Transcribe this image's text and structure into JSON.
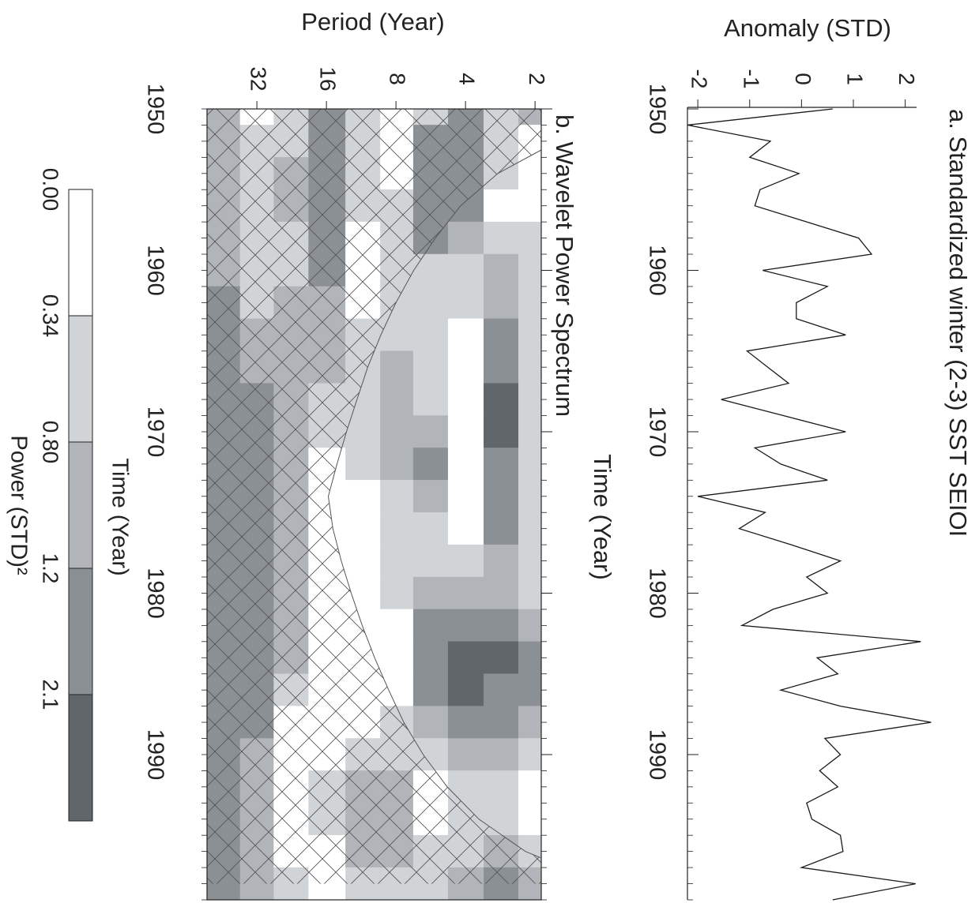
{
  "chart_data": [
    {
      "type": "line",
      "title": "a. Standardized winter (2-3) SST SEIOI",
      "xlabel": "Time (Year)",
      "ylabel": "Anomaly (STD)",
      "x": [
        1950,
        1951,
        1952,
        1953,
        1954,
        1955,
        1956,
        1957,
        1958,
        1959,
        1960,
        1961,
        1962,
        1963,
        1964,
        1965,
        1966,
        1967,
        1968,
        1969,
        1970,
        1971,
        1972,
        1973,
        1974,
        1975,
        1976,
        1977,
        1978,
        1979,
        1980,
        1981,
        1982,
        1983,
        1984,
        1985,
        1986,
        1987,
        1988,
        1989,
        1990,
        1991,
        1992,
        1993,
        1994,
        1995,
        1996,
        1997,
        1998,
        1999
      ],
      "values": [
        0.6,
        -2.2,
        -0.6,
        -1.0,
        -0.05,
        -0.8,
        -0.9,
        0.1,
        1.1,
        1.35,
        -0.75,
        0.5,
        -0.1,
        -0.1,
        0.85,
        -1.05,
        -0.65,
        -0.25,
        -1.55,
        -0.35,
        0.85,
        -0.9,
        -0.4,
        0.5,
        -2.0,
        -0.7,
        -1.2,
        -0.2,
        0.75,
        0.1,
        0.5,
        -0.55,
        -1.15,
        2.3,
        0.3,
        0.7,
        -0.4,
        0.75,
        2.5,
        0.45,
        0.75,
        0.35,
        0.7,
        0.1,
        0.2,
        0.75,
        0.8,
        0.0,
        2.2,
        0.6
      ],
      "color": "#1a1a1a",
      "xlim": [
        1950,
        1999
      ],
      "xticks": [
        1950,
        1960,
        1970,
        1980,
        1990
      ],
      "ylim": [
        -2.2,
        2.6
      ],
      "yticks": [
        -2,
        -1,
        0,
        1,
        2
      ]
    },
    {
      "type": "heatmap",
      "title": "b. Wavelet Power Spectrum",
      "xlabel": "Time (Year)",
      "ylabel": "Period (Year)",
      "x": [
        1950,
        1952,
        1954,
        1956,
        1958,
        1960,
        1962,
        1964,
        1966,
        1968,
        1970,
        1972,
        1974,
        1976,
        1978,
        1980,
        1982,
        1984,
        1986,
        1988,
        1990,
        1992,
        1994,
        1996,
        1998
      ],
      "y": [
        2,
        2.8,
        4,
        5.7,
        8,
        11,
        16,
        23,
        32,
        45
      ],
      "z": [
        [
          1.0,
          0.2,
          0.2,
          0.2,
          0.6,
          0.6,
          0.6,
          0.6,
          0.6,
          0.6,
          0.6,
          0.6,
          0.6,
          0.6,
          0.6,
          0.6,
          1.0,
          1.6,
          1.6,
          1.0,
          0.6,
          0.2,
          0.2,
          0.6,
          1.0
        ],
        [
          0.6,
          0.6,
          0.6,
          0.2,
          0.6,
          1.0,
          1.0,
          1.6,
          1.6,
          2.4,
          2.4,
          1.6,
          1.6,
          1.6,
          1.0,
          1.0,
          1.6,
          2.4,
          1.6,
          1.6,
          1.0,
          0.6,
          0.6,
          1.0,
          1.6
        ],
        [
          1.6,
          1.6,
          1.6,
          1.6,
          1.0,
          0.6,
          0.6,
          0.2,
          0.2,
          0.2,
          0.2,
          0.2,
          0.2,
          0.2,
          0.6,
          1.0,
          1.6,
          2.4,
          2.4,
          1.6,
          1.0,
          0.6,
          0.6,
          0.6,
          1.0
        ],
        [
          0.6,
          1.6,
          1.6,
          1.6,
          1.6,
          0.6,
          0.6,
          0.6,
          0.6,
          0.6,
          1.0,
          1.6,
          1.0,
          0.6,
          0.6,
          1.0,
          1.6,
          1.6,
          1.6,
          1.0,
          0.6,
          0.2,
          0.2,
          0.6,
          0.6
        ],
        [
          0.2,
          0.2,
          0.2,
          0.6,
          0.6,
          0.6,
          0.6,
          0.6,
          1.0,
          1.0,
          1.0,
          1.0,
          0.6,
          0.6,
          0.6,
          0.6,
          0.2,
          0.2,
          0.2,
          0.6,
          0.6,
          1.0,
          1.0,
          1.0,
          0.6
        ],
        [
          0.6,
          0.6,
          0.6,
          0.6,
          0.2,
          0.2,
          0.2,
          0.6,
          0.6,
          0.6,
          0.6,
          0.6,
          0.2,
          0.2,
          0.2,
          0.2,
          0.2,
          0.2,
          0.2,
          0.2,
          0.6,
          1.0,
          1.0,
          1.0,
          0.6
        ],
        [
          1.6,
          1.6,
          1.6,
          1.6,
          1.6,
          1.6,
          1.0,
          1.0,
          1.0,
          0.6,
          0.6,
          0.2,
          0.2,
          0.2,
          0.2,
          0.2,
          0.2,
          0.2,
          0.2,
          0.2,
          0.2,
          0.6,
          0.6,
          0.2,
          0.2
        ],
        [
          0.6,
          0.6,
          1.0,
          1.0,
          0.6,
          0.6,
          1.0,
          1.0,
          1.0,
          1.0,
          1.0,
          1.0,
          1.0,
          1.0,
          1.0,
          1.0,
          1.0,
          1.0,
          0.6,
          0.2,
          0.2,
          0.2,
          0.2,
          0.2,
          0.6
        ],
        [
          0.2,
          0.6,
          0.6,
          0.6,
          0.6,
          0.6,
          0.6,
          1.0,
          1.0,
          1.6,
          1.6,
          1.6,
          1.6,
          1.6,
          1.6,
          1.6,
          1.6,
          1.6,
          1.6,
          1.6,
          1.0,
          1.0,
          1.0,
          1.0,
          1.0
        ],
        [
          1.0,
          1.0,
          1.0,
          1.0,
          1.0,
          1.0,
          1.6,
          1.6,
          1.6,
          1.6,
          1.6,
          1.6,
          1.6,
          1.6,
          1.6,
          1.6,
          1.6,
          1.6,
          1.6,
          1.6,
          1.6,
          1.6,
          1.6,
          1.6,
          1.6
        ]
      ],
      "xlim": [
        1950,
        1999
      ],
      "xticks": [
        1950,
        1960,
        1970,
        1980,
        1990
      ],
      "ylim": [
        1.88,
        52.6
      ],
      "yticks": [
        2,
        4,
        8,
        16,
        32
      ],
      "ylog": true,
      "coi": [
        0.3,
        1.6,
        2.9,
        4.2,
        5.4,
        6.7,
        8,
        9.3,
        10.6,
        11.8,
        13.1,
        14.4,
        15.7,
        15,
        13.8,
        12.5,
        11.2,
        9.9,
        8.6,
        7.4,
        6.1,
        4.8,
        3.5,
        2.2,
        1.0
      ],
      "levels": [
        {
          "value": 0,
          "label": "0.00"
        },
        0.34,
        {
          "value": 0.8,
          "label": "0.80"
        },
        1.2,
        2.1
      ],
      "colors": [
        "#ffffff",
        "#d1d4d7",
        "#b1b5b9",
        "#8b9095",
        "#60666a"
      ],
      "colorbar_label": "Power (STD)²",
      "colorbar_xlabel": "Time (Year)"
    }
  ]
}
